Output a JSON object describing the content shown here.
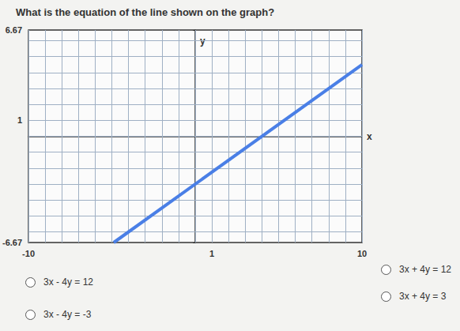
{
  "question": "What is the equation of the line shown on the graph?",
  "chart_data": {
    "type": "line",
    "x": [
      -4.89,
      10
    ],
    "values": [
      -6.67,
      4.5
    ],
    "color": "#4a7fe6",
    "xlim": [
      -10,
      10
    ],
    "ylim": [
      -6.67,
      6.67
    ],
    "xticks": [
      -10,
      1,
      10
    ],
    "yticks": [
      -6.67,
      1,
      6.67
    ],
    "xgrid": [
      -10,
      -9,
      -8,
      -7,
      -6,
      -5,
      -4,
      -3,
      -2,
      -1,
      0,
      1,
      2,
      3,
      4,
      5,
      6,
      7,
      8,
      9,
      10
    ],
    "ygrid": [
      -6,
      -5,
      -4,
      -3,
      -2,
      -1,
      0,
      1,
      2,
      3,
      4,
      5,
      6
    ],
    "x_label": "x",
    "y_label": "y",
    "grid": true
  },
  "choices": [
    "3x - 4y = 12",
    "3x - 4y = -3",
    "3x + 4y = 12",
    "3x + 4y = 3"
  ]
}
